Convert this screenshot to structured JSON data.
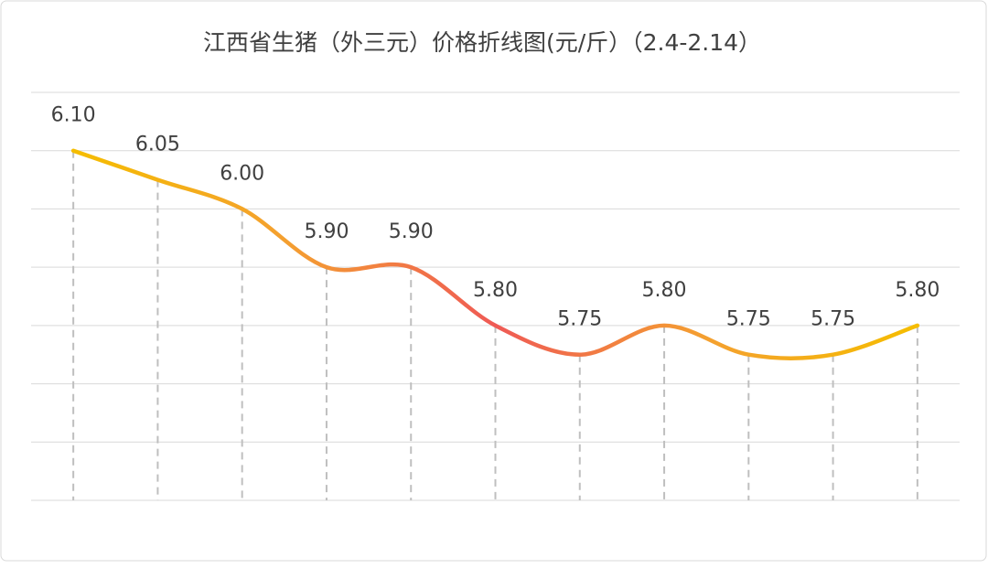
{
  "chart_data": {
    "type": "line",
    "title": "江西省生猪（外三元）价格折线图(元/斤）（2.4-2.14）",
    "categories": [
      null,
      null,
      null,
      null,
      null,
      null,
      null,
      null,
      null,
      null,
      null
    ],
    "values": [
      6.1,
      6.05,
      6.0,
      5.9,
      5.9,
      5.8,
      5.75,
      5.8,
      5.75,
      5.75,
      5.8
    ],
    "value_labels": [
      "6.10",
      "6.05",
      "6.00",
      "5.90",
      "5.90",
      "5.80",
      "5.75",
      "5.80",
      "5.75",
      "5.75",
      "5.80"
    ],
    "ylim": [
      5.5,
      6.2
    ],
    "yticks": [
      5.5,
      5.6,
      5.7,
      5.8,
      5.9,
      6.0,
      6.1,
      6.2
    ],
    "grid": true,
    "smooth": true,
    "drop_lines": true,
    "color_stops": [
      "#f5bd00",
      "#f4a030",
      "#ef5a55",
      "#f4a030",
      "#f5bd00"
    ]
  }
}
